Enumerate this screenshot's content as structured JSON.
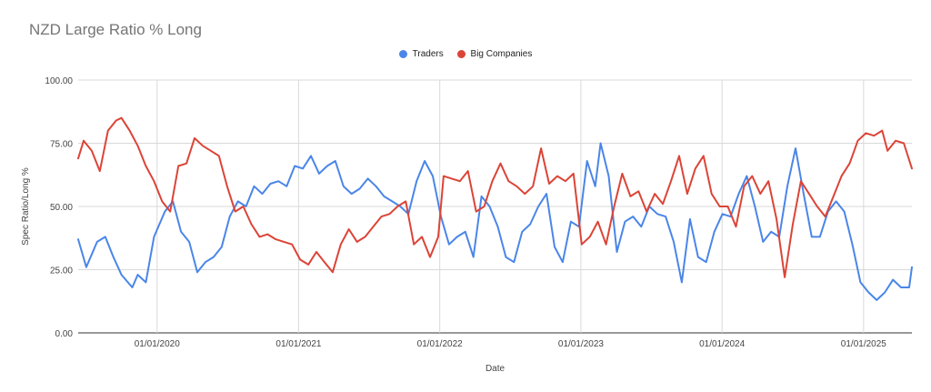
{
  "chart_data": {
    "type": "line",
    "title": "NZD Large Ratio % Long",
    "xlabel": "Date",
    "ylabel": "Spec Ratio/Long %",
    "ylim": [
      0,
      100
    ],
    "yticks": [
      0,
      25,
      50,
      75,
      100
    ],
    "ytick_labels": [
      "0.00",
      "25.00",
      "50.00",
      "75.00",
      "100.00"
    ],
    "xticks": [
      "2020-01-01",
      "2021-01-01",
      "2022-01-01",
      "2023-01-01",
      "2024-01-01",
      "2025-01-01"
    ],
    "xtick_labels": [
      "01/01/2020",
      "01/01/2021",
      "01/01/2022",
      "01/01/2023",
      "01/01/2024",
      "01/01/2025"
    ],
    "xlim": [
      "2019-06-11",
      "2025-05-06"
    ],
    "grid": true,
    "legend_position": "top-center",
    "series": [
      {
        "name": "Traders",
        "color": "#4a86e8",
        "points": [
          [
            "2019-06-11",
            37
          ],
          [
            "2019-07-02",
            26
          ],
          [
            "2019-07-30",
            36
          ],
          [
            "2019-08-20",
            38
          ],
          [
            "2019-09-10",
            30
          ],
          [
            "2019-10-01",
            23
          ],
          [
            "2019-10-29",
            18
          ],
          [
            "2019-11-12",
            23
          ],
          [
            "2019-12-03",
            20
          ],
          [
            "2019-12-24",
            38
          ],
          [
            "2020-01-21",
            48
          ],
          [
            "2020-02-11",
            52
          ],
          [
            "2020-03-03",
            40
          ],
          [
            "2020-03-24",
            36
          ],
          [
            "2020-04-14",
            24
          ],
          [
            "2020-05-05",
            28
          ],
          [
            "2020-05-26",
            30
          ],
          [
            "2020-06-16",
            34
          ],
          [
            "2020-07-07",
            46
          ],
          [
            "2020-07-28",
            52
          ],
          [
            "2020-08-18",
            50
          ],
          [
            "2020-09-08",
            58
          ],
          [
            "2020-09-29",
            55
          ],
          [
            "2020-10-20",
            59
          ],
          [
            "2020-11-10",
            60
          ],
          [
            "2020-12-01",
            58
          ],
          [
            "2020-12-22",
            66
          ],
          [
            "2021-01-12",
            65
          ],
          [
            "2021-02-02",
            70
          ],
          [
            "2021-02-23",
            63
          ],
          [
            "2021-03-16",
            66
          ],
          [
            "2021-04-06",
            68
          ],
          [
            "2021-04-27",
            58
          ],
          [
            "2021-05-18",
            55
          ],
          [
            "2021-06-08",
            57
          ],
          [
            "2021-06-29",
            61
          ],
          [
            "2021-07-20",
            58
          ],
          [
            "2021-08-10",
            54
          ],
          [
            "2021-08-31",
            52
          ],
          [
            "2021-09-21",
            50
          ],
          [
            "2021-10-12",
            47
          ],
          [
            "2021-11-02",
            60
          ],
          [
            "2021-11-23",
            68
          ],
          [
            "2021-12-14",
            62
          ],
          [
            "2022-01-04",
            46
          ],
          [
            "2022-01-25",
            35
          ],
          [
            "2022-02-15",
            38
          ],
          [
            "2022-03-08",
            40
          ],
          [
            "2022-03-29",
            30
          ],
          [
            "2022-04-19",
            54
          ],
          [
            "2022-05-10",
            50
          ],
          [
            "2022-05-31",
            42
          ],
          [
            "2022-06-21",
            30
          ],
          [
            "2022-07-12",
            28
          ],
          [
            "2022-08-02",
            40
          ],
          [
            "2022-08-23",
            43
          ],
          [
            "2022-09-13",
            50
          ],
          [
            "2022-10-04",
            55
          ],
          [
            "2022-10-25",
            34
          ],
          [
            "2022-11-15",
            28
          ],
          [
            "2022-12-06",
            44
          ],
          [
            "2022-12-27",
            42
          ],
          [
            "2023-01-17",
            68
          ],
          [
            "2023-02-07",
            58
          ],
          [
            "2023-02-21",
            75
          ],
          [
            "2023-03-14",
            62
          ],
          [
            "2023-04-04",
            32
          ],
          [
            "2023-04-25",
            44
          ],
          [
            "2023-05-16",
            46
          ],
          [
            "2023-06-06",
            42
          ],
          [
            "2023-06-27",
            50
          ],
          [
            "2023-07-18",
            47
          ],
          [
            "2023-08-08",
            46
          ],
          [
            "2023-08-29",
            36
          ],
          [
            "2023-09-19",
            20
          ],
          [
            "2023-10-10",
            45
          ],
          [
            "2023-10-31",
            30
          ],
          [
            "2023-11-21",
            28
          ],
          [
            "2023-12-12",
            40
          ],
          [
            "2024-01-02",
            47
          ],
          [
            "2024-01-23",
            46
          ],
          [
            "2024-02-13",
            55
          ],
          [
            "2024-03-05",
            62
          ],
          [
            "2024-03-26",
            50
          ],
          [
            "2024-04-16",
            36
          ],
          [
            "2024-05-07",
            40
          ],
          [
            "2024-05-28",
            38
          ],
          [
            "2024-06-18",
            58
          ],
          [
            "2024-07-09",
            73
          ],
          [
            "2024-07-30",
            55
          ],
          [
            "2024-08-20",
            38
          ],
          [
            "2024-09-10",
            38
          ],
          [
            "2024-10-01",
            48
          ],
          [
            "2024-10-22",
            52
          ],
          [
            "2024-11-12",
            48
          ],
          [
            "2024-12-03",
            35
          ],
          [
            "2024-12-24",
            20
          ],
          [
            "2025-01-14",
            16
          ],
          [
            "2025-02-04",
            13
          ],
          [
            "2025-02-25",
            16
          ],
          [
            "2025-03-18",
            21
          ],
          [
            "2025-04-08",
            18
          ],
          [
            "2025-04-29",
            18
          ],
          [
            "2025-05-06",
            26
          ]
        ]
      },
      {
        "name": "Big Companies",
        "color": "#db4437",
        "points": [
          [
            "2019-06-11",
            69
          ],
          [
            "2019-06-25",
            76
          ],
          [
            "2019-07-16",
            72
          ],
          [
            "2019-08-06",
            64
          ],
          [
            "2019-08-27",
            80
          ],
          [
            "2019-09-17",
            84
          ],
          [
            "2019-10-01",
            85
          ],
          [
            "2019-10-22",
            80
          ],
          [
            "2019-11-12",
            74
          ],
          [
            "2019-12-03",
            66
          ],
          [
            "2019-12-24",
            60
          ],
          [
            "2020-01-14",
            52
          ],
          [
            "2020-02-04",
            48
          ],
          [
            "2020-02-25",
            66
          ],
          [
            "2020-03-17",
            67
          ],
          [
            "2020-04-07",
            77
          ],
          [
            "2020-04-28",
            74
          ],
          [
            "2020-05-19",
            72
          ],
          [
            "2020-06-09",
            70
          ],
          [
            "2020-06-30",
            58
          ],
          [
            "2020-07-21",
            48
          ],
          [
            "2020-08-11",
            50
          ],
          [
            "2020-09-01",
            43
          ],
          [
            "2020-09-22",
            38
          ],
          [
            "2020-10-13",
            39
          ],
          [
            "2020-11-03",
            37
          ],
          [
            "2020-11-24",
            36
          ],
          [
            "2020-12-15",
            35
          ],
          [
            "2021-01-05",
            29
          ],
          [
            "2021-01-26",
            27
          ],
          [
            "2021-02-16",
            32
          ],
          [
            "2021-03-09",
            28
          ],
          [
            "2021-03-30",
            24
          ],
          [
            "2021-04-20",
            35
          ],
          [
            "2021-05-11",
            41
          ],
          [
            "2021-06-01",
            36
          ],
          [
            "2021-06-22",
            38
          ],
          [
            "2021-07-13",
            42
          ],
          [
            "2021-08-03",
            46
          ],
          [
            "2021-08-24",
            47
          ],
          [
            "2021-09-14",
            50
          ],
          [
            "2021-10-05",
            52
          ],
          [
            "2021-10-26",
            35
          ],
          [
            "2021-11-16",
            38
          ],
          [
            "2021-12-07",
            30
          ],
          [
            "2021-12-28",
            38
          ],
          [
            "2022-01-11",
            62
          ],
          [
            "2022-02-01",
            61
          ],
          [
            "2022-02-22",
            60
          ],
          [
            "2022-03-15",
            64
          ],
          [
            "2022-04-05",
            48
          ],
          [
            "2022-04-26",
            50
          ],
          [
            "2022-05-17",
            60
          ],
          [
            "2022-06-07",
            67
          ],
          [
            "2022-06-28",
            60
          ],
          [
            "2022-07-19",
            58
          ],
          [
            "2022-08-09",
            55
          ],
          [
            "2022-08-30",
            58
          ],
          [
            "2022-09-20",
            73
          ],
          [
            "2022-10-11",
            59
          ],
          [
            "2022-11-01",
            62
          ],
          [
            "2022-11-22",
            60
          ],
          [
            "2022-12-13",
            63
          ],
          [
            "2023-01-03",
            35
          ],
          [
            "2023-01-24",
            38
          ],
          [
            "2023-02-14",
            44
          ],
          [
            "2023-03-07",
            35
          ],
          [
            "2023-03-28",
            50
          ],
          [
            "2023-04-18",
            63
          ],
          [
            "2023-05-09",
            54
          ],
          [
            "2023-05-30",
            56
          ],
          [
            "2023-06-20",
            48
          ],
          [
            "2023-07-11",
            55
          ],
          [
            "2023-08-01",
            51
          ],
          [
            "2023-08-22",
            60
          ],
          [
            "2023-09-12",
            70
          ],
          [
            "2023-10-03",
            55
          ],
          [
            "2023-10-24",
            65
          ],
          [
            "2023-11-14",
            70
          ],
          [
            "2023-12-05",
            55
          ],
          [
            "2023-12-26",
            50
          ],
          [
            "2024-01-16",
            50
          ],
          [
            "2024-02-06",
            42
          ],
          [
            "2024-02-27",
            58
          ],
          [
            "2024-03-19",
            62
          ],
          [
            "2024-04-09",
            55
          ],
          [
            "2024-04-30",
            60
          ],
          [
            "2024-05-21",
            45
          ],
          [
            "2024-06-11",
            22
          ],
          [
            "2024-07-02",
            43
          ],
          [
            "2024-07-23",
            60
          ],
          [
            "2024-08-13",
            55
          ],
          [
            "2024-09-03",
            50
          ],
          [
            "2024-09-24",
            46
          ],
          [
            "2024-10-15",
            54
          ],
          [
            "2024-11-05",
            62
          ],
          [
            "2024-11-26",
            67
          ],
          [
            "2024-12-17",
            76
          ],
          [
            "2025-01-07",
            79
          ],
          [
            "2025-01-28",
            78
          ],
          [
            "2025-02-18",
            80
          ],
          [
            "2025-03-04",
            72
          ],
          [
            "2025-03-25",
            76
          ],
          [
            "2025-04-15",
            75
          ],
          [
            "2025-05-06",
            65
          ]
        ]
      }
    ]
  }
}
